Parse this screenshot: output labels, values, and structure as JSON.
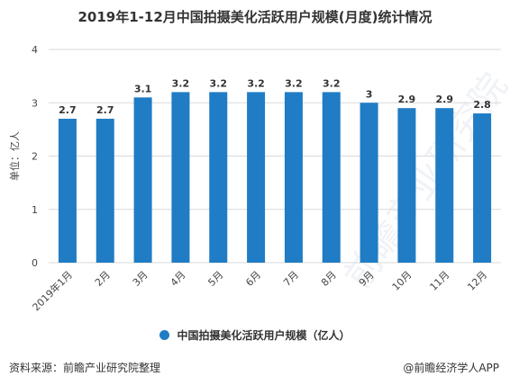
{
  "title": "2019年1-12月中国拍摄美化活跃用户规模(月度)统计情况",
  "legend_label": "中国拍摄美化活跃用户规模（亿人）",
  "source_text": "资料来源：前瞻产业研究院整理",
  "brand_text": "@前瞻经济学人APP",
  "watermark_text": "前瞻产业研究院",
  "colors": {
    "bar": "#1f7cc5",
    "grid": "#d9d9d9",
    "axis_text": "#444444"
  },
  "chart_data": {
    "type": "bar",
    "categories": [
      "2019年1月",
      "2月",
      "3月",
      "4月",
      "5月",
      "6月",
      "7月",
      "8月",
      "9月",
      "10月",
      "11月",
      "12月"
    ],
    "values": [
      2.7,
      2.7,
      3.1,
      3.2,
      3.2,
      3.2,
      3.2,
      3.2,
      3,
      2.9,
      2.9,
      2.8
    ],
    "value_labels": [
      "2.7",
      "2.7",
      "3.1",
      "3.2",
      "3.2",
      "3.2",
      "3.2",
      "3.2",
      "3",
      "2.9",
      "2.9",
      "2.8"
    ],
    "ylabel": "单位：亿人",
    "ylim": [
      0,
      4
    ],
    "yticks": [
      0,
      1,
      2,
      3,
      4
    ],
    "grid": true,
    "legend_position": "bottom"
  }
}
